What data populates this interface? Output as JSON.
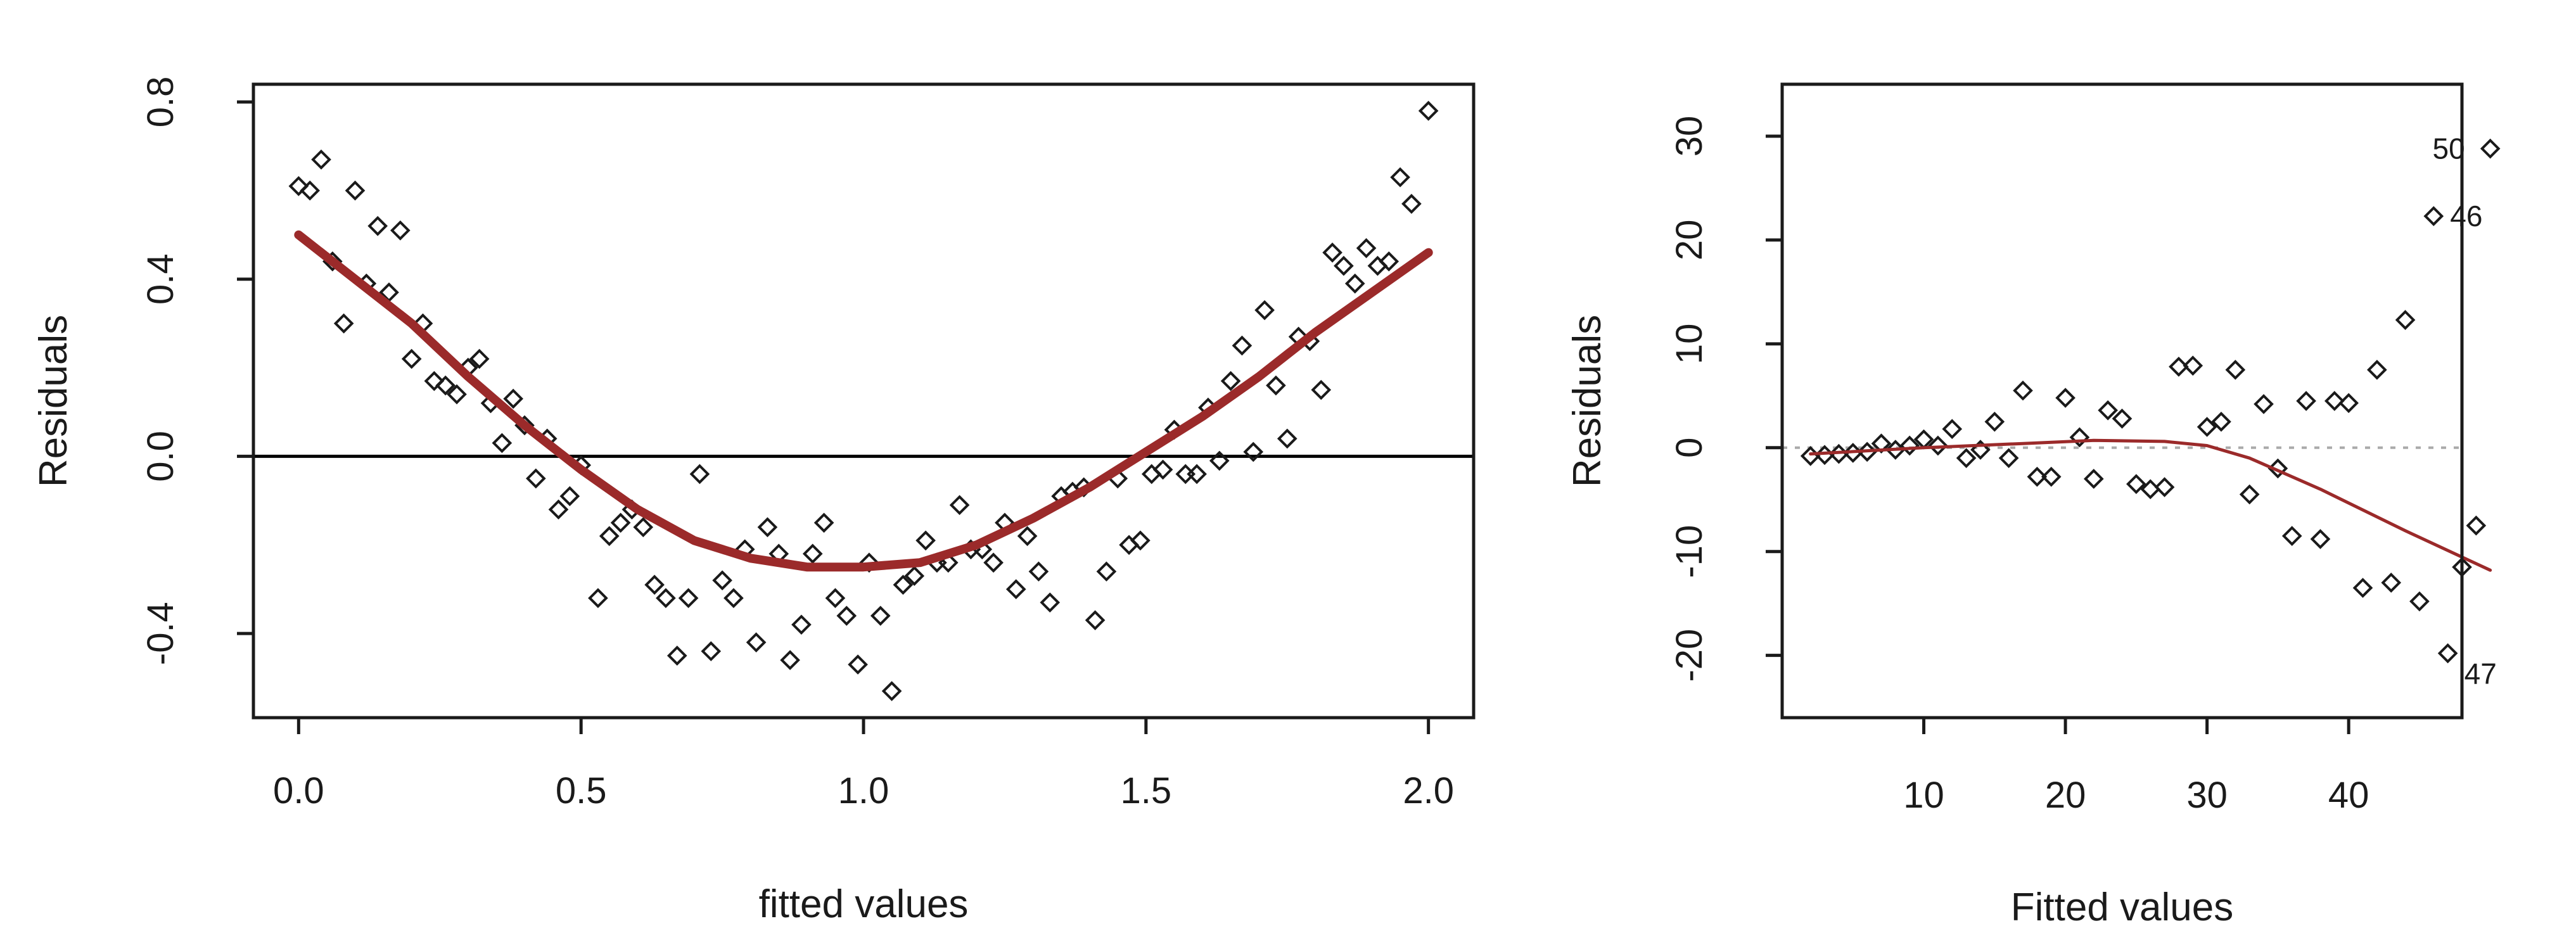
{
  "chart_data": [
    {
      "type": "scatter",
      "title": "",
      "xlabel": "fitted values",
      "ylabel": "Residuals",
      "xlim": [
        -0.08,
        2.08
      ],
      "ylim": [
        -0.59,
        0.84
      ],
      "xticks": [
        0.0,
        0.5,
        1.0,
        1.5,
        2.0
      ],
      "xtick_labels": [
        "0.0",
        "0.5",
        "1.0",
        "1.5",
        "2.0"
      ],
      "yticks": [
        -0.4,
        0.0,
        0.4,
        0.8
      ],
      "ytick_labels": [
        "-0.4",
        "0.0",
        "0.4",
        "0.8"
      ],
      "reference_line": {
        "y": 0,
        "style": "solid",
        "color": "#000000"
      },
      "smooth_color": "#9b2a2a",
      "points": [
        [
          0.0,
          0.61
        ],
        [
          0.02,
          0.6
        ],
        [
          0.04,
          0.67
        ],
        [
          0.06,
          0.44
        ],
        [
          0.08,
          0.3
        ],
        [
          0.1,
          0.6
        ],
        [
          0.12,
          0.39
        ],
        [
          0.14,
          0.52
        ],
        [
          0.16,
          0.37
        ],
        [
          0.18,
          0.51
        ],
        [
          0.2,
          0.22
        ],
        [
          0.22,
          0.3
        ],
        [
          0.24,
          0.17
        ],
        [
          0.26,
          0.16
        ],
        [
          0.28,
          0.14
        ],
        [
          0.3,
          0.2
        ],
        [
          0.32,
          0.22
        ],
        [
          0.34,
          0.12
        ],
        [
          0.36,
          0.03
        ],
        [
          0.38,
          0.13
        ],
        [
          0.4,
          0.07
        ],
        [
          0.42,
          -0.05
        ],
        [
          0.44,
          0.04
        ],
        [
          0.46,
          -0.12
        ],
        [
          0.48,
          -0.09
        ],
        [
          0.5,
          -0.02
        ],
        [
          0.53,
          -0.32
        ],
        [
          0.55,
          -0.18
        ],
        [
          0.57,
          -0.15
        ],
        [
          0.59,
          -0.12
        ],
        [
          0.61,
          -0.16
        ],
        [
          0.63,
          -0.29
        ],
        [
          0.65,
          -0.32
        ],
        [
          0.67,
          -0.45
        ],
        [
          0.69,
          -0.32
        ],
        [
          0.71,
          -0.04
        ],
        [
          0.73,
          -0.44
        ],
        [
          0.75,
          -0.28
        ],
        [
          0.77,
          -0.32
        ],
        [
          0.79,
          -0.21
        ],
        [
          0.81,
          -0.42
        ],
        [
          0.83,
          -0.16
        ],
        [
          0.85,
          -0.22
        ],
        [
          0.87,
          -0.46
        ],
        [
          0.89,
          -0.38
        ],
        [
          0.91,
          -0.22
        ],
        [
          0.93,
          -0.15
        ],
        [
          0.95,
          -0.32
        ],
        [
          0.97,
          -0.36
        ],
        [
          0.99,
          -0.47
        ],
        [
          1.01,
          -0.24
        ],
        [
          1.03,
          -0.36
        ],
        [
          1.05,
          -0.53
        ],
        [
          1.07,
          -0.29
        ],
        [
          1.09,
          -0.27
        ],
        [
          1.11,
          -0.19
        ],
        [
          1.13,
          -0.24
        ],
        [
          1.15,
          -0.24
        ],
        [
          1.17,
          -0.11
        ],
        [
          1.19,
          -0.21
        ],
        [
          1.21,
          -0.21
        ],
        [
          1.23,
          -0.24
        ],
        [
          1.25,
          -0.15
        ],
        [
          1.27,
          -0.3
        ],
        [
          1.29,
          -0.18
        ],
        [
          1.31,
          -0.26
        ],
        [
          1.33,
          -0.33
        ],
        [
          1.35,
          -0.09
        ],
        [
          1.37,
          -0.08
        ],
        [
          1.39,
          -0.07
        ],
        [
          1.41,
          -0.37
        ],
        [
          1.43,
          -0.26
        ],
        [
          1.45,
          -0.05
        ],
        [
          1.47,
          -0.2
        ],
        [
          1.49,
          -0.19
        ],
        [
          1.51,
          -0.04
        ],
        [
          1.53,
          -0.03
        ],
        [
          1.55,
          0.06
        ],
        [
          1.57,
          -0.04
        ],
        [
          1.59,
          -0.04
        ],
        [
          1.61,
          0.11
        ],
        [
          1.63,
          -0.01
        ],
        [
          1.65,
          0.17
        ],
        [
          1.67,
          0.25
        ],
        [
          1.69,
          0.01
        ],
        [
          1.71,
          0.33
        ],
        [
          1.73,
          0.16
        ],
        [
          1.75,
          0.04
        ],
        [
          1.77,
          0.27
        ],
        [
          1.79,
          0.26
        ],
        [
          1.81,
          0.15
        ],
        [
          1.83,
          0.46
        ],
        [
          1.85,
          0.43
        ],
        [
          1.87,
          0.39
        ],
        [
          1.89,
          0.47
        ],
        [
          1.91,
          0.43
        ],
        [
          1.93,
          0.44
        ],
        [
          1.95,
          0.63
        ],
        [
          1.97,
          0.57
        ],
        [
          2.0,
          0.78
        ]
      ],
      "smooth": [
        [
          0.0,
          0.5
        ],
        [
          0.1,
          0.4
        ],
        [
          0.2,
          0.3
        ],
        [
          0.3,
          0.18
        ],
        [
          0.4,
          0.07
        ],
        [
          0.5,
          -0.03
        ],
        [
          0.6,
          -0.12
        ],
        [
          0.7,
          -0.19
        ],
        [
          0.8,
          -0.23
        ],
        [
          0.9,
          -0.25
        ],
        [
          1.0,
          -0.25
        ],
        [
          1.1,
          -0.24
        ],
        [
          1.2,
          -0.2
        ],
        [
          1.3,
          -0.14
        ],
        [
          1.4,
          -0.07
        ],
        [
          1.5,
          0.01
        ],
        [
          1.6,
          0.09
        ],
        [
          1.7,
          0.18
        ],
        [
          1.8,
          0.28
        ],
        [
          1.9,
          0.37
        ],
        [
          2.0,
          0.46
        ]
      ]
    },
    {
      "type": "scatter",
      "title": "",
      "xlabel": "Fitted values",
      "ylabel": "Residuals",
      "xlim": [
        0,
        48
      ],
      "ylim": [
        -26,
        35
      ],
      "xticks": [
        10,
        20,
        30,
        40
      ],
      "xtick_labels": [
        "10",
        "20",
        "30",
        "40"
      ],
      "yticks": [
        -20,
        -10,
        0,
        10,
        20,
        30
      ],
      "ytick_labels": [
        "-20",
        "-10",
        "0",
        "10",
        "20",
        "30"
      ],
      "reference_line": {
        "y": 0,
        "style": "dotted",
        "color": "#aaaaaa"
      },
      "smooth_color": "#9b2a2a",
      "points": [
        [
          2.0,
          -0.8
        ],
        [
          3.0,
          -0.7
        ],
        [
          4.0,
          -0.6
        ],
        [
          5.0,
          -0.5
        ],
        [
          6.0,
          -0.4
        ],
        [
          7.0,
          0.4
        ],
        [
          8.0,
          -0.2
        ],
        [
          9.0,
          0.2
        ],
        [
          10.0,
          0.8
        ],
        [
          11.0,
          0.2
        ],
        [
          12.0,
          1.8
        ],
        [
          13.0,
          -1.0
        ],
        [
          14.0,
          -0.2
        ],
        [
          15.0,
          2.5
        ],
        [
          16.0,
          -1.0
        ],
        [
          17.0,
          5.5
        ],
        [
          18.0,
          -2.8
        ],
        [
          19.0,
          -2.8
        ],
        [
          20.0,
          4.8
        ],
        [
          21.0,
          1.0
        ],
        [
          22.0,
          -3.0
        ],
        [
          23.0,
          3.6
        ],
        [
          24.0,
          2.8
        ],
        [
          25.0,
          -3.5
        ],
        [
          26.0,
          -4.0
        ],
        [
          27.0,
          -3.8
        ],
        [
          28.0,
          7.8
        ],
        [
          29.0,
          7.9
        ],
        [
          30.0,
          2.0
        ],
        [
          31.0,
          2.5
        ],
        [
          32.0,
          7.5
        ],
        [
          33.0,
          -4.5
        ],
        [
          34.0,
          4.2
        ],
        [
          35.0,
          -2.0
        ],
        [
          36.0,
          -8.5
        ],
        [
          37.0,
          4.5
        ],
        [
          38.0,
          -8.8
        ],
        [
          39.0,
          4.5
        ],
        [
          40.0,
          4.3
        ],
        [
          41.0,
          -13.5
        ],
        [
          42.0,
          7.5
        ],
        [
          43.0,
          -13.0
        ],
        [
          44.0,
          12.3
        ],
        [
          45.0,
          -14.8
        ],
        [
          46.0,
          22.3
        ],
        [
          47.0,
          -19.8
        ],
        [
          48.0,
          -11.5
        ],
        [
          49.0,
          -7.5
        ],
        [
          50.0,
          28.8
        ]
      ],
      "smooth": [
        [
          2.0,
          -0.6
        ],
        [
          10.0,
          0.0
        ],
        [
          17.0,
          0.4
        ],
        [
          22.0,
          0.7
        ],
        [
          27.0,
          0.6
        ],
        [
          30.0,
          0.2
        ],
        [
          33.0,
          -1.0
        ],
        [
          38.0,
          -4.0
        ],
        [
          44.0,
          -8.0
        ],
        [
          50.0,
          -11.8
        ]
      ],
      "annotations": [
        {
          "label": "50",
          "x": 50.0,
          "y": 28.8
        },
        {
          "label": "46",
          "x": 46.0,
          "y": 22.3
        },
        {
          "label": "47",
          "x": 47.0,
          "y": -19.8
        }
      ]
    }
  ]
}
